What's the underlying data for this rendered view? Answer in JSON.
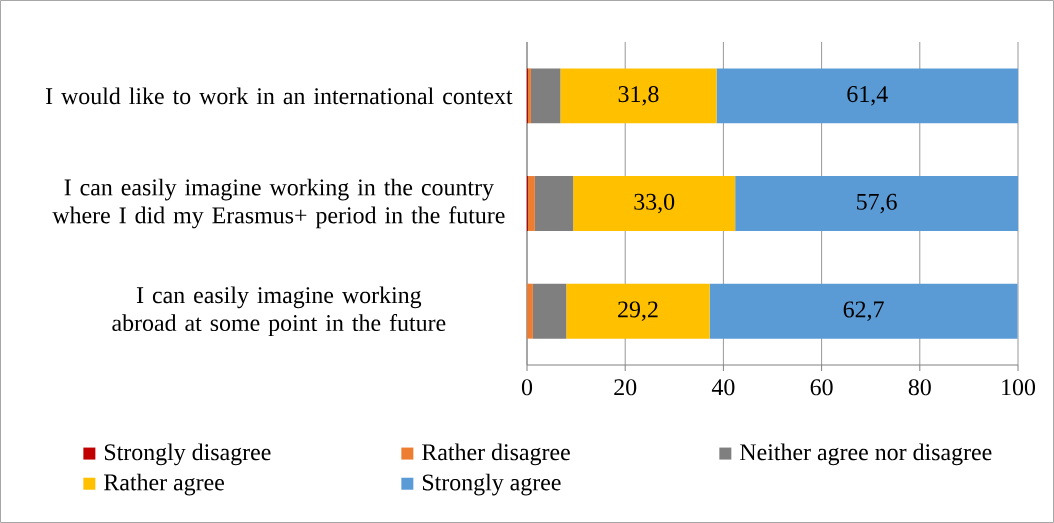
{
  "chart_data": {
    "type": "bar",
    "orientation": "horizontal",
    "stacked": true,
    "categories": [
      "I would like to work in an international context",
      "I can easily imagine working in the country where I did my Erasmus+ period in the future",
      "I can easily imagine working abroad at some point in the future"
    ],
    "series": [
      {
        "name": "Strongly disagree",
        "color": "#c00000",
        "values": [
          0.2,
          0.2,
          null
        ]
      },
      {
        "name": "Rather disagree",
        "color": "#ed7d31",
        "values": [
          0.6,
          1.4,
          1.2
        ]
      },
      {
        "name": "Neither agree nor disagree",
        "color": "#7f7f7f",
        "values": [
          6.0,
          7.8,
          6.8
        ]
      },
      {
        "name": "Rather agree",
        "color": "#ffc000",
        "values": [
          31.8,
          33.0,
          29.2
        ],
        "value_labels": [
          "31,8",
          "33,0",
          "29,2"
        ]
      },
      {
        "name": "Strongly agree",
        "color": "#5b9bd5",
        "values": [
          61.4,
          57.6,
          62.7
        ],
        "value_labels": [
          "61,4",
          "57,6",
          "62,7"
        ]
      }
    ],
    "xlim": [
      0,
      100
    ],
    "xticks": [
      0,
      20,
      40,
      60,
      80,
      100
    ],
    "grid": "x",
    "legend": "bottom"
  }
}
